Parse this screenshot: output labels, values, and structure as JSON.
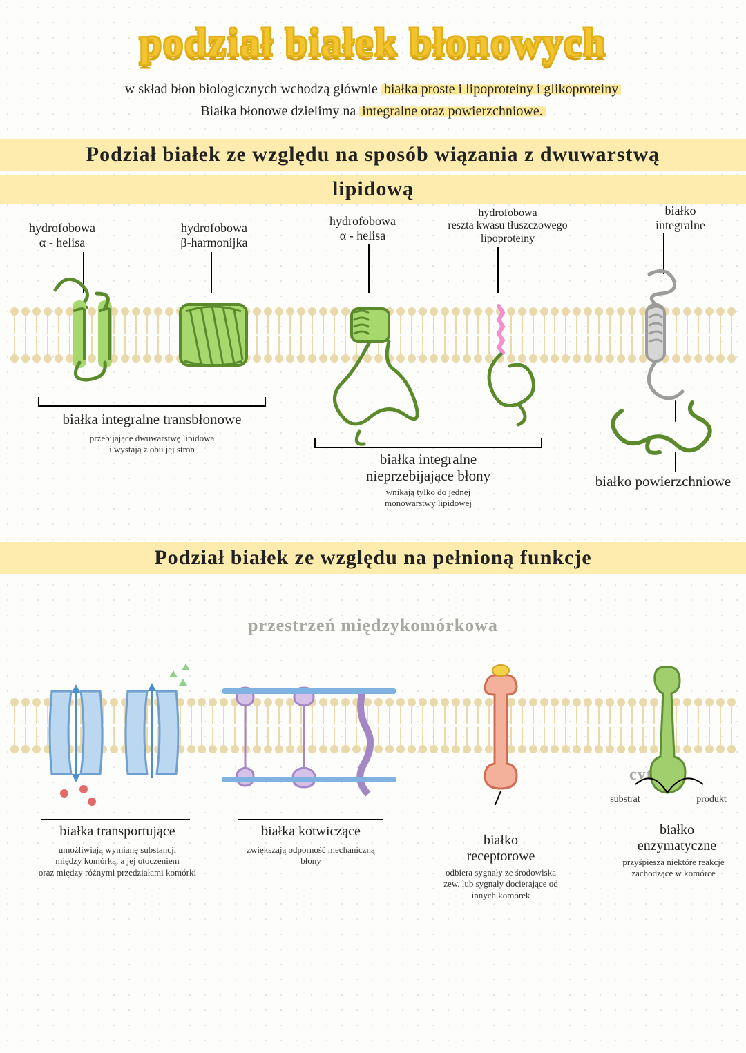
{
  "colors": {
    "title_fill": "#f4c430",
    "title_shadow": "#d2a010",
    "highlight": "#fce99a",
    "band": "#fdecae",
    "lipid": "#ead9ab",
    "protein_green_stroke": "#5a8a2c",
    "protein_green_fill": "#a7d86e",
    "protein_grey_stroke": "#9c9c9c",
    "protein_grey_fill": "#d6d6d6",
    "lipo_pink": "#f58fd0",
    "transport_blue_fill": "#bcd7f0",
    "transport_blue_stroke": "#6fa0cf",
    "arrow_blue": "#4b8fce",
    "anchor_purple_fill": "#d6c2e8",
    "anchor_purple_stroke": "#a487c5",
    "anchor_bar": "#7fb2e0",
    "receptor_fill": "#f3b09b",
    "receptor_stroke": "#cf6e55",
    "receptor_ligand": "#f4d24a",
    "enzyme_fill": "#a2cf6e",
    "enzyme_stroke": "#5f8f35",
    "grey_text": "#a8a8a0",
    "dot_red": "#e46a6a",
    "dot_green": "#8fcf8a"
  },
  "title": "podział białek błonowych",
  "intro": {
    "line1_a": "w skład błon biologicznych wchodzą głównie ",
    "line1_hl": "białka proste i lipoproteiny i glikoproteiny",
    "line2_a": "Białka błonowe dzielimy na ",
    "line2_hl": "integralne oraz powierzchniowe."
  },
  "section1": {
    "heading_line1": "Podział białek ze względu na sposób wiązania z dwuwarstwą",
    "heading_line2": "lipidową",
    "labels": {
      "alpha1": "hydrofobowa\nα - helisa",
      "beta": "hydrofobowa\nβ-harmonijka",
      "alpha2": "hydrofobowa\nα - helisa",
      "lipo": "hydrofobowa\nreszta kwasu tłuszczowego\nlipoproteiny",
      "integral_right": "białko\nintegralne",
      "group_transmem": "białka integralne transbłonowe",
      "group_transmem_sub": "przebijające dwuwarstwę lipidową\ni wystają z obu jej stron",
      "group_nonpierce": "białka integralne\nnieprzebijające błony",
      "group_nonpierce_sub": "wnikają tylko do jednej\nmonowarstwy lipidowej",
      "surface": "białko powierzchniowe"
    }
  },
  "section2": {
    "heading": "Podział białek ze względu na pełnioną funkcje",
    "space_label": "przestrzeń międzykomórkowa",
    "cytosol_label": "cytozol",
    "labels": {
      "transport": "białka transportujące",
      "transport_sub": "umożliwiają wymianę substancji\nmiędzy komórką, a jej otoczeniem\noraz między różnymi przedziałami komórki",
      "anchor": "białka kotwiczące",
      "anchor_sub": "zwiększają odporność mechaniczną\nbłony",
      "receptor": "białko\nreceptorowe",
      "receptor_sub": "odbiera sygnały ze środowiska\nzew. lub sygnały docierające od\ninnych komórek",
      "enzyme": "białko\nenzymatyczne",
      "enzyme_sub": "przyśpiesza niektóre reakcje\nzachodzące w komórce",
      "substrate": "substrat",
      "product": "produkt"
    }
  }
}
